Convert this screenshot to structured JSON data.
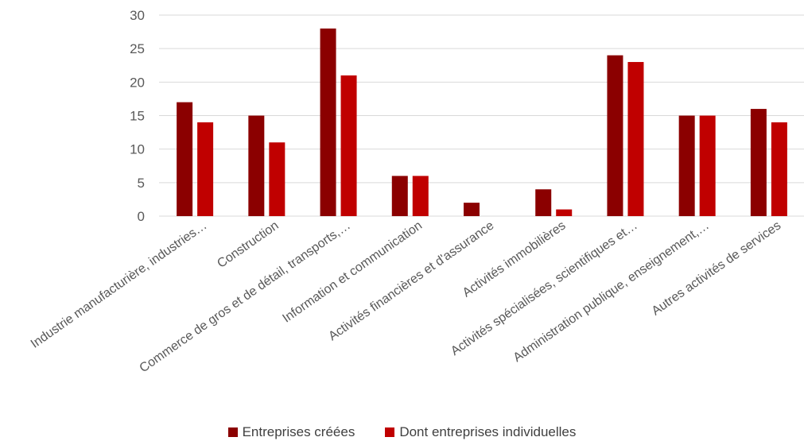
{
  "chart_data": {
    "type": "bar",
    "categories": [
      "Industrie manufacturière, industries…",
      "Construction",
      "Commerce de gros et de détail, transports,…",
      "Information et communication",
      "Activités financières et d'assurance",
      "Activités immobilières",
      "Activités spécialisées, scientifiques et…",
      "Administration publique, enseignement,…",
      "Autres activités de services"
    ],
    "series": [
      {
        "name": "Entreprises créées",
        "values": [
          17,
          15,
          28,
          6,
          2,
          4,
          24,
          15,
          16
        ],
        "color": "#8B0000"
      },
      {
        "name": "Dont entreprises individuelles",
        "values": [
          14,
          11,
          21,
          6,
          0,
          1,
          23,
          15,
          14
        ],
        "color": "#C00000"
      }
    ],
    "yticks": [
      "0",
      "5",
      "10",
      "15",
      "20",
      "25",
      "30"
    ],
    "ylim": [
      0,
      30
    ],
    "grid": true,
    "legend_position": "bottom"
  }
}
